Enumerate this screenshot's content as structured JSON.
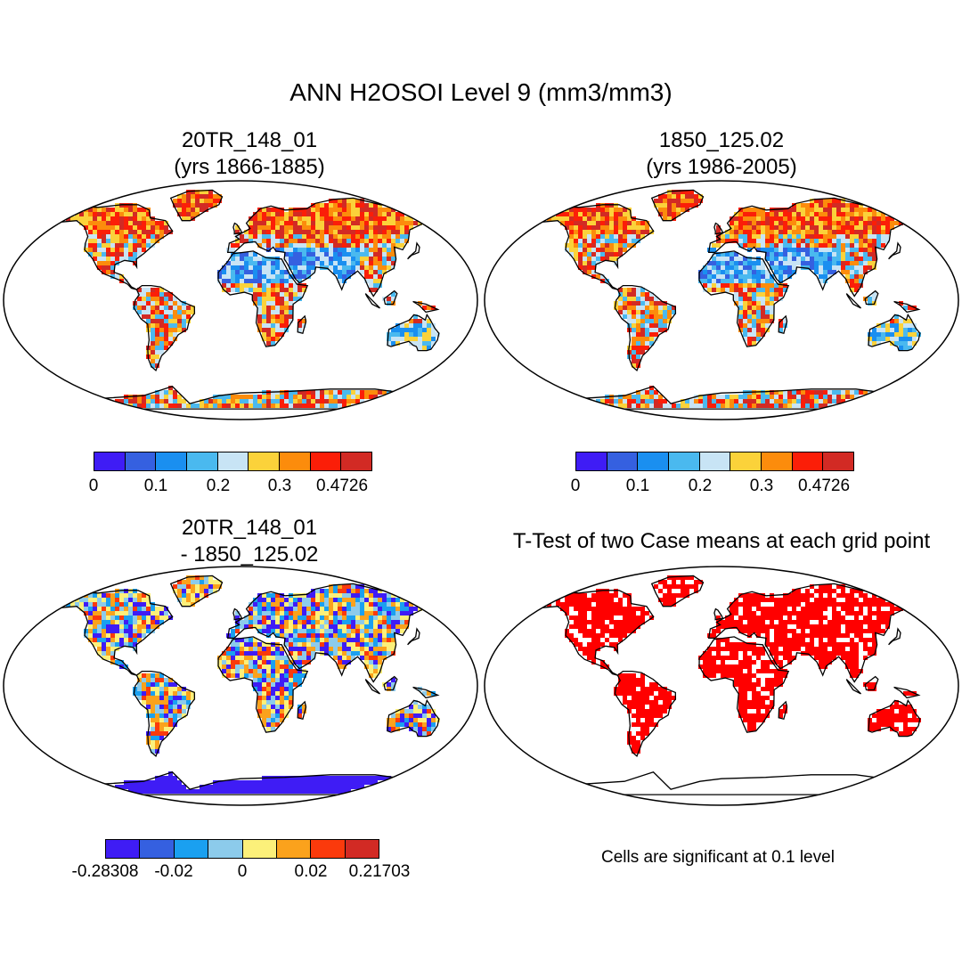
{
  "main_title": "ANN H2OSOI Level 9 (mm3/mm3)",
  "panels": [
    {
      "title1": "20TR_148_01",
      "title2": "(yrs 1866-1885)"
    },
    {
      "title1": "1850_125.02",
      "title2": "(yrs 1986-2005)"
    },
    {
      "title1": "20TR_148_01",
      "title2": "- 1850_125.02"
    },
    {
      "title1": "T-Test of two Case means at each grid point",
      "title2": ""
    }
  ],
  "colorbar_abs": {
    "colors": [
      "#3f1cf5",
      "#3560e0",
      "#1a8ff0",
      "#4ab9ef",
      "#c8e4f5",
      "#fbd23a",
      "#fc8c0c",
      "#fb1e08",
      "#d22a24"
    ],
    "ticks": [
      "0",
      "0.1",
      "0.2",
      "0.3",
      "0.4726"
    ]
  },
  "colorbar_diff": {
    "colors": [
      "#3f1cf5",
      "#3560e0",
      "#1aa0f0",
      "#8ccbeb",
      "#fcf07a",
      "#fba21c",
      "#fb3a0c",
      "#d22a24"
    ],
    "ticks": [
      "-0.28308",
      "-0.02",
      "0",
      "0.02",
      "0.21703"
    ]
  },
  "note": "Cells are significant at 0.1 level",
  "chart_data": [
    {
      "type": "heatmap",
      "title": "20TR_148_01 (yrs 1866-1885)",
      "variable": "ANN H2OSOI Level 9",
      "units": "mm3/mm3",
      "range": [
        0,
        0.4726
      ],
      "ticks": [
        0,
        0.1,
        0.2,
        0.3,
        0.4726
      ]
    },
    {
      "type": "heatmap",
      "title": "1850_125.02 (yrs 1986-2005)",
      "variable": "ANN H2OSOI Level 9",
      "units": "mm3/mm3",
      "range": [
        0,
        0.4726
      ],
      "ticks": [
        0,
        0.1,
        0.2,
        0.3,
        0.4726
      ]
    },
    {
      "type": "heatmap",
      "title": "20TR_148_01 - 1850_125.02",
      "variable": "ANN H2OSOI Level 9 difference",
      "units": "mm3/mm3",
      "range": [
        -0.28308,
        0.21703
      ],
      "ticks": [
        -0.28308,
        -0.02,
        0,
        0.02,
        0.21703
      ]
    },
    {
      "type": "heatmap",
      "title": "T-Test of two Case means at each grid point",
      "significance_level": 0.1
    }
  ]
}
